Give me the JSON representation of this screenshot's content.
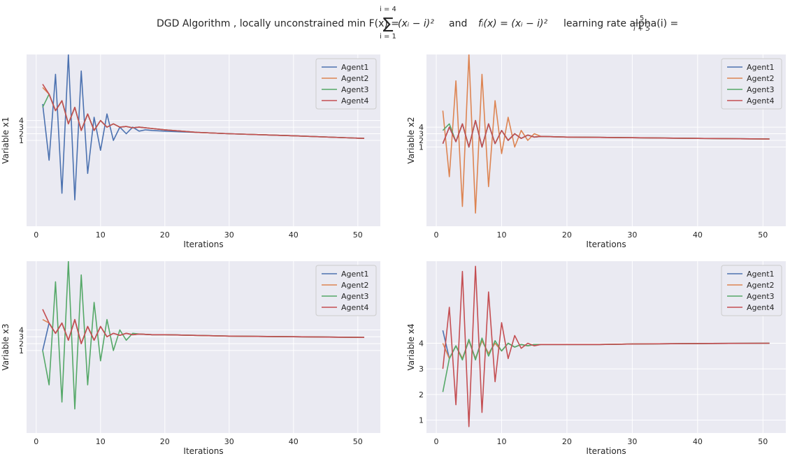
{
  "title": {
    "prefix": "DGD Algorithm  , locally unconstrained  min F(x) = ",
    "sum_upper": "i = 4",
    "sum_lower": "i = 1",
    "sum_term": "(xᵢ − i)²",
    "and_text": " and ",
    "fi_text": "fᵢ(x) = (xᵢ − i)²",
    "lr_text": "  learning rate alpha(i) = ",
    "lr_num": "5",
    "lr_den": "i + 5"
  },
  "colors": {
    "Agent1": "#4c72b0",
    "Agent2": "#dd8452",
    "Agent3": "#55a868",
    "Agent4": "#c44e52",
    "plot_bg": "#eaeaf2",
    "grid": "#ffffff"
  },
  "chart_data": [
    {
      "type": "line",
      "xlabel": "Iterations",
      "ylabel": "Variable x1",
      "xlim": [
        -1.5,
        53.5
      ],
      "ylim": [
        -12,
        14
      ],
      "xticks": [
        0,
        10,
        20,
        30,
        40,
        50
      ],
      "yticks": [
        1,
        2,
        3,
        4
      ],
      "legend": "top-right",
      "series": [
        {
          "name": "Agent1",
          "x": [
            1,
            2,
            3,
            4,
            5,
            6,
            7,
            8,
            9,
            10,
            11,
            12,
            13,
            14,
            15,
            16,
            17,
            18,
            20,
            25,
            30,
            40,
            51
          ],
          "y": [
            6.5,
            -2,
            11,
            -7,
            14,
            -8,
            11.5,
            -4,
            4.5,
            -0.5,
            5,
            1,
            3,
            2,
            3,
            2.4,
            2.6,
            2.5,
            2.4,
            2.2,
            2.0,
            1.7,
            1.3
          ]
        },
        {
          "name": "Agent2",
          "x": [
            1,
            2,
            3,
            4,
            5,
            6,
            7,
            8,
            9,
            10,
            11,
            12,
            13,
            14,
            15,
            16,
            18,
            20,
            25,
            30,
            40,
            51
          ],
          "y": [
            9,
            8,
            5.5,
            7,
            3.5,
            6,
            2.5,
            5,
            2.5,
            4,
            3,
            3.5,
            3,
            3.1,
            2.9,
            3.0,
            2.8,
            2.6,
            2.2,
            2.0,
            1.7,
            1.3
          ]
        },
        {
          "name": "Agent3",
          "x": [
            1,
            2,
            3,
            4,
            5,
            6,
            7,
            8,
            9,
            10,
            11,
            12,
            13,
            14,
            15,
            16,
            18,
            20,
            25,
            30,
            40,
            51
          ],
          "y": [
            6,
            8,
            5.5,
            7,
            3.5,
            6,
            2.5,
            5,
            2.5,
            4,
            3,
            3.5,
            3,
            3.1,
            2.9,
            3.0,
            2.8,
            2.6,
            2.2,
            2.0,
            1.7,
            1.3
          ]
        },
        {
          "name": "Agent4",
          "x": [
            1,
            2,
            3,
            4,
            5,
            6,
            7,
            8,
            9,
            10,
            11,
            12,
            13,
            14,
            15,
            16,
            18,
            20,
            25,
            30,
            40,
            51
          ],
          "y": [
            9.5,
            8,
            5.5,
            7,
            3.5,
            6,
            2.5,
            5,
            2.5,
            4,
            3,
            3.5,
            3,
            3.1,
            2.9,
            3.0,
            2.8,
            2.6,
            2.2,
            2.0,
            1.7,
            1.3
          ]
        }
      ]
    },
    {
      "type": "line",
      "xlabel": "Iterations",
      "ylabel": "Variable x2",
      "xlim": [
        -1.5,
        53.5
      ],
      "ylim": [
        -11,
        15
      ],
      "xticks": [
        0,
        10,
        20,
        30,
        40,
        50
      ],
      "yticks": [
        1,
        2,
        3,
        4
      ],
      "legend": "top-right",
      "series": [
        {
          "name": "Agent1",
          "x": [
            1,
            2,
            3,
            4,
            5,
            6,
            7,
            8,
            9,
            10,
            11,
            12,
            13,
            14,
            15,
            16,
            18,
            20,
            25,
            30,
            40,
            51
          ],
          "y": [
            1.5,
            4,
            1.8,
            4.5,
            1,
            5,
            1,
            4.5,
            1.5,
            3.5,
            2,
            3,
            2.3,
            2.8,
            2.5,
            2.6,
            2.55,
            2.5,
            2.45,
            2.4,
            2.3,
            2.2
          ]
        },
        {
          "name": "Agent2",
          "x": [
            1,
            2,
            3,
            4,
            5,
            6,
            7,
            8,
            9,
            10,
            11,
            12,
            13,
            14,
            15,
            16,
            18,
            20,
            25,
            30,
            40,
            51
          ],
          "y": [
            6.5,
            -3.5,
            11,
            -8,
            15,
            -9,
            12,
            -5,
            8,
            0,
            5.5,
            1,
            3.5,
            2,
            3,
            2.6,
            2.55,
            2.5,
            2.45,
            2.4,
            2.3,
            2.2
          ]
        },
        {
          "name": "Agent3",
          "x": [
            1,
            2,
            3,
            4,
            5,
            6,
            7,
            8,
            9,
            10,
            11,
            12,
            13,
            14,
            15,
            16,
            18,
            20,
            25,
            30,
            40,
            51
          ],
          "y": [
            3.5,
            4.5,
            1.8,
            4.5,
            1,
            5,
            1,
            4.5,
            1.5,
            3.5,
            2,
            3,
            2.3,
            2.8,
            2.5,
            2.6,
            2.55,
            2.5,
            2.45,
            2.4,
            2.3,
            2.2
          ]
        },
        {
          "name": "Agent4",
          "x": [
            1,
            2,
            3,
            4,
            5,
            6,
            7,
            8,
            9,
            10,
            11,
            12,
            13,
            14,
            15,
            16,
            18,
            20,
            25,
            30,
            40,
            51
          ],
          "y": [
            1.5,
            4,
            1.8,
            4.5,
            1,
            5,
            1,
            4.5,
            1.5,
            3.5,
            2,
            3,
            2.3,
            2.8,
            2.5,
            2.6,
            2.55,
            2.5,
            2.45,
            2.4,
            2.3,
            2.2
          ]
        }
      ]
    },
    {
      "type": "line",
      "xlabel": "Iterations",
      "ylabel": "Variable x3",
      "xlim": [
        -1.5,
        53.5
      ],
      "ylim": [
        -11,
        14
      ],
      "xticks": [
        0,
        10,
        20,
        30,
        40,
        50
      ],
      "yticks": [
        1,
        2,
        3,
        4
      ],
      "legend": "top-right",
      "series": [
        {
          "name": "Agent1",
          "x": [
            1,
            2,
            3,
            4,
            5,
            6,
            7,
            8,
            9,
            10,
            11,
            12,
            13,
            14,
            15,
            16,
            18,
            20,
            25,
            30,
            40,
            51
          ],
          "y": [
            1,
            5,
            3.5,
            5,
            2.5,
            5.5,
            2,
            4.5,
            2.5,
            4.5,
            3,
            3.5,
            3.2,
            3.5,
            3.3,
            3.4,
            3.3,
            3.3,
            3.2,
            3.1,
            3.0,
            2.9
          ]
        },
        {
          "name": "Agent2",
          "x": [
            1,
            2,
            3,
            4,
            5,
            6,
            7,
            8,
            9,
            10,
            11,
            12,
            13,
            14,
            15,
            16,
            18,
            20,
            25,
            30,
            40,
            51
          ],
          "y": [
            5.5,
            5,
            3.5,
            5,
            2.5,
            5.5,
            2,
            4.5,
            2.5,
            4.5,
            3,
            3.5,
            3.2,
            3.5,
            3.3,
            3.4,
            3.3,
            3.3,
            3.2,
            3.1,
            3.0,
            2.9
          ]
        },
        {
          "name": "Agent3",
          "x": [
            1,
            2,
            3,
            4,
            5,
            6,
            7,
            8,
            9,
            10,
            11,
            12,
            13,
            14,
            15,
            16,
            18,
            20,
            25,
            30,
            40,
            51
          ],
          "y": [
            1,
            -4,
            11,
            -6.5,
            14,
            -7.5,
            12,
            -4,
            8,
            -0.5,
            5.5,
            1,
            4,
            2.5,
            3.5,
            3.4,
            3.3,
            3.3,
            3.2,
            3.1,
            3.0,
            2.9
          ]
        },
        {
          "name": "Agent4",
          "x": [
            1,
            2,
            3,
            4,
            5,
            6,
            7,
            8,
            9,
            10,
            11,
            12,
            13,
            14,
            15,
            16,
            18,
            20,
            25,
            30,
            40,
            51
          ],
          "y": [
            7,
            5,
            3.5,
            5,
            2.5,
            5.5,
            2,
            4.5,
            2.5,
            4.5,
            3,
            3.5,
            3.2,
            3.5,
            3.3,
            3.4,
            3.3,
            3.3,
            3.2,
            3.1,
            3.0,
            2.9
          ]
        }
      ]
    },
    {
      "type": "line",
      "xlabel": "Iterations",
      "ylabel": "Variable x4",
      "xlim": [
        -1.5,
        53.5
      ],
      "ylim": [
        0.5,
        7.2
      ],
      "xticks": [
        0,
        10,
        20,
        30,
        40,
        50
      ],
      "yticks": [
        1,
        2,
        3,
        4
      ],
      "legend": "top-right",
      "series": [
        {
          "name": "Agent1",
          "x": [
            1,
            2,
            3,
            4,
            5,
            6,
            7,
            8,
            9,
            10,
            11,
            12,
            13,
            14,
            15,
            16,
            18,
            20,
            25,
            30,
            40,
            51
          ],
          "y": [
            4.5,
            3.4,
            3.9,
            3.4,
            4.1,
            3.4,
            4.1,
            3.6,
            4.0,
            3.7,
            4.0,
            3.85,
            3.95,
            3.9,
            3.95,
            3.95,
            3.95,
            3.95,
            3.95,
            3.97,
            3.99,
            4.0
          ]
        },
        {
          "name": "Agent2",
          "x": [
            1,
            2,
            3,
            4,
            5,
            6,
            7,
            8,
            9,
            10,
            11,
            12,
            13,
            14,
            15,
            16,
            18,
            20,
            25,
            30,
            40,
            51
          ],
          "y": [
            4.0,
            3.4,
            3.9,
            3.4,
            4.1,
            3.4,
            4.1,
            3.6,
            4.0,
            3.7,
            4.0,
            3.85,
            3.95,
            3.9,
            3.95,
            3.95,
            3.95,
            3.95,
            3.95,
            3.97,
            3.99,
            4.0
          ]
        },
        {
          "name": "Agent3",
          "x": [
            1,
            2,
            3,
            4,
            5,
            6,
            7,
            8,
            9,
            10,
            11,
            12,
            13,
            14,
            15,
            16,
            18,
            20,
            25,
            30,
            40,
            51
          ],
          "y": [
            2.1,
            3.4,
            3.9,
            3.35,
            4.15,
            3.35,
            4.2,
            3.5,
            4.1,
            3.7,
            4.0,
            3.85,
            3.95,
            3.9,
            3.95,
            3.95,
            3.95,
            3.95,
            3.95,
            3.97,
            3.99,
            4.0
          ]
        },
        {
          "name": "Agent4",
          "x": [
            1,
            2,
            3,
            4,
            5,
            6,
            7,
            8,
            9,
            10,
            11,
            12,
            13,
            14,
            15,
            16,
            18,
            20,
            25,
            30,
            40,
            51
          ],
          "y": [
            3.0,
            5.4,
            1.6,
            6.8,
            0.75,
            7.0,
            1.3,
            6.0,
            2.5,
            4.8,
            3.4,
            4.3,
            3.8,
            4.0,
            3.9,
            3.95,
            3.95,
            3.95,
            3.95,
            3.97,
            3.99,
            4.0
          ]
        }
      ]
    }
  ]
}
